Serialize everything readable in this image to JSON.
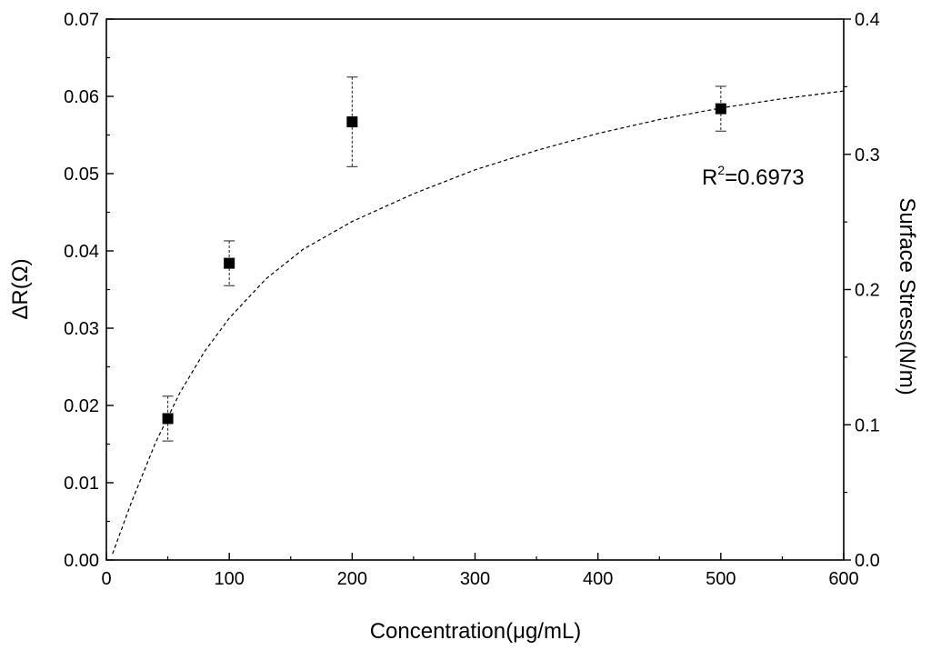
{
  "chart_data": {
    "type": "scatter",
    "xlabel": "Concentration(μg/mL)",
    "ylabel": "ΔR(Ω)",
    "y2label": "Surface Stress(N/m)",
    "xlim": [
      0,
      600
    ],
    "ylim": [
      0,
      0.07
    ],
    "y2lim": [
      0,
      0.4
    ],
    "x_ticks": [
      0,
      100,
      200,
      300,
      400,
      500,
      600
    ],
    "x_tick_labels": [
      "0",
      "100",
      "200",
      "300",
      "400",
      "500",
      "600"
    ],
    "y_ticks": [
      0,
      0.01,
      0.02,
      0.03,
      0.04,
      0.05,
      0.06,
      0.07
    ],
    "y_tick_labels": [
      "0.00",
      "0.01",
      "0.02",
      "0.03",
      "0.04",
      "0.05",
      "0.06",
      "0.07"
    ],
    "y2_ticks": [
      0,
      0.1,
      0.2,
      0.3,
      0.4
    ],
    "y2_tick_labels": [
      "0.0",
      "0.1",
      "0.2",
      "0.3",
      "0.4"
    ],
    "grid": false,
    "series": [
      {
        "x": [
          50,
          100,
          200,
          500
        ],
        "y": [
          0.0183,
          0.0384,
          0.0567,
          0.0584
        ],
        "y_err": [
          0.0029,
          0.0029,
          0.0058,
          0.0029
        ],
        "marker": "square",
        "color": "#000000"
      }
    ],
    "fit": {
      "style": "dashed",
      "color": "#000000",
      "x": [
        5,
        20,
        40,
        60,
        80,
        100,
        130,
        160,
        200,
        250,
        300,
        350,
        400,
        450,
        500,
        550,
        600
      ],
      "y": [
        0.0008,
        0.0073,
        0.0152,
        0.0217,
        0.027,
        0.0313,
        0.0364,
        0.0402,
        0.0438,
        0.0474,
        0.0505,
        0.053,
        0.0552,
        0.057,
        0.0585,
        0.0597,
        0.0607
      ]
    },
    "annotations": [
      {
        "base": "R",
        "sup": "2",
        "rest": "=0.6973"
      }
    ]
  }
}
